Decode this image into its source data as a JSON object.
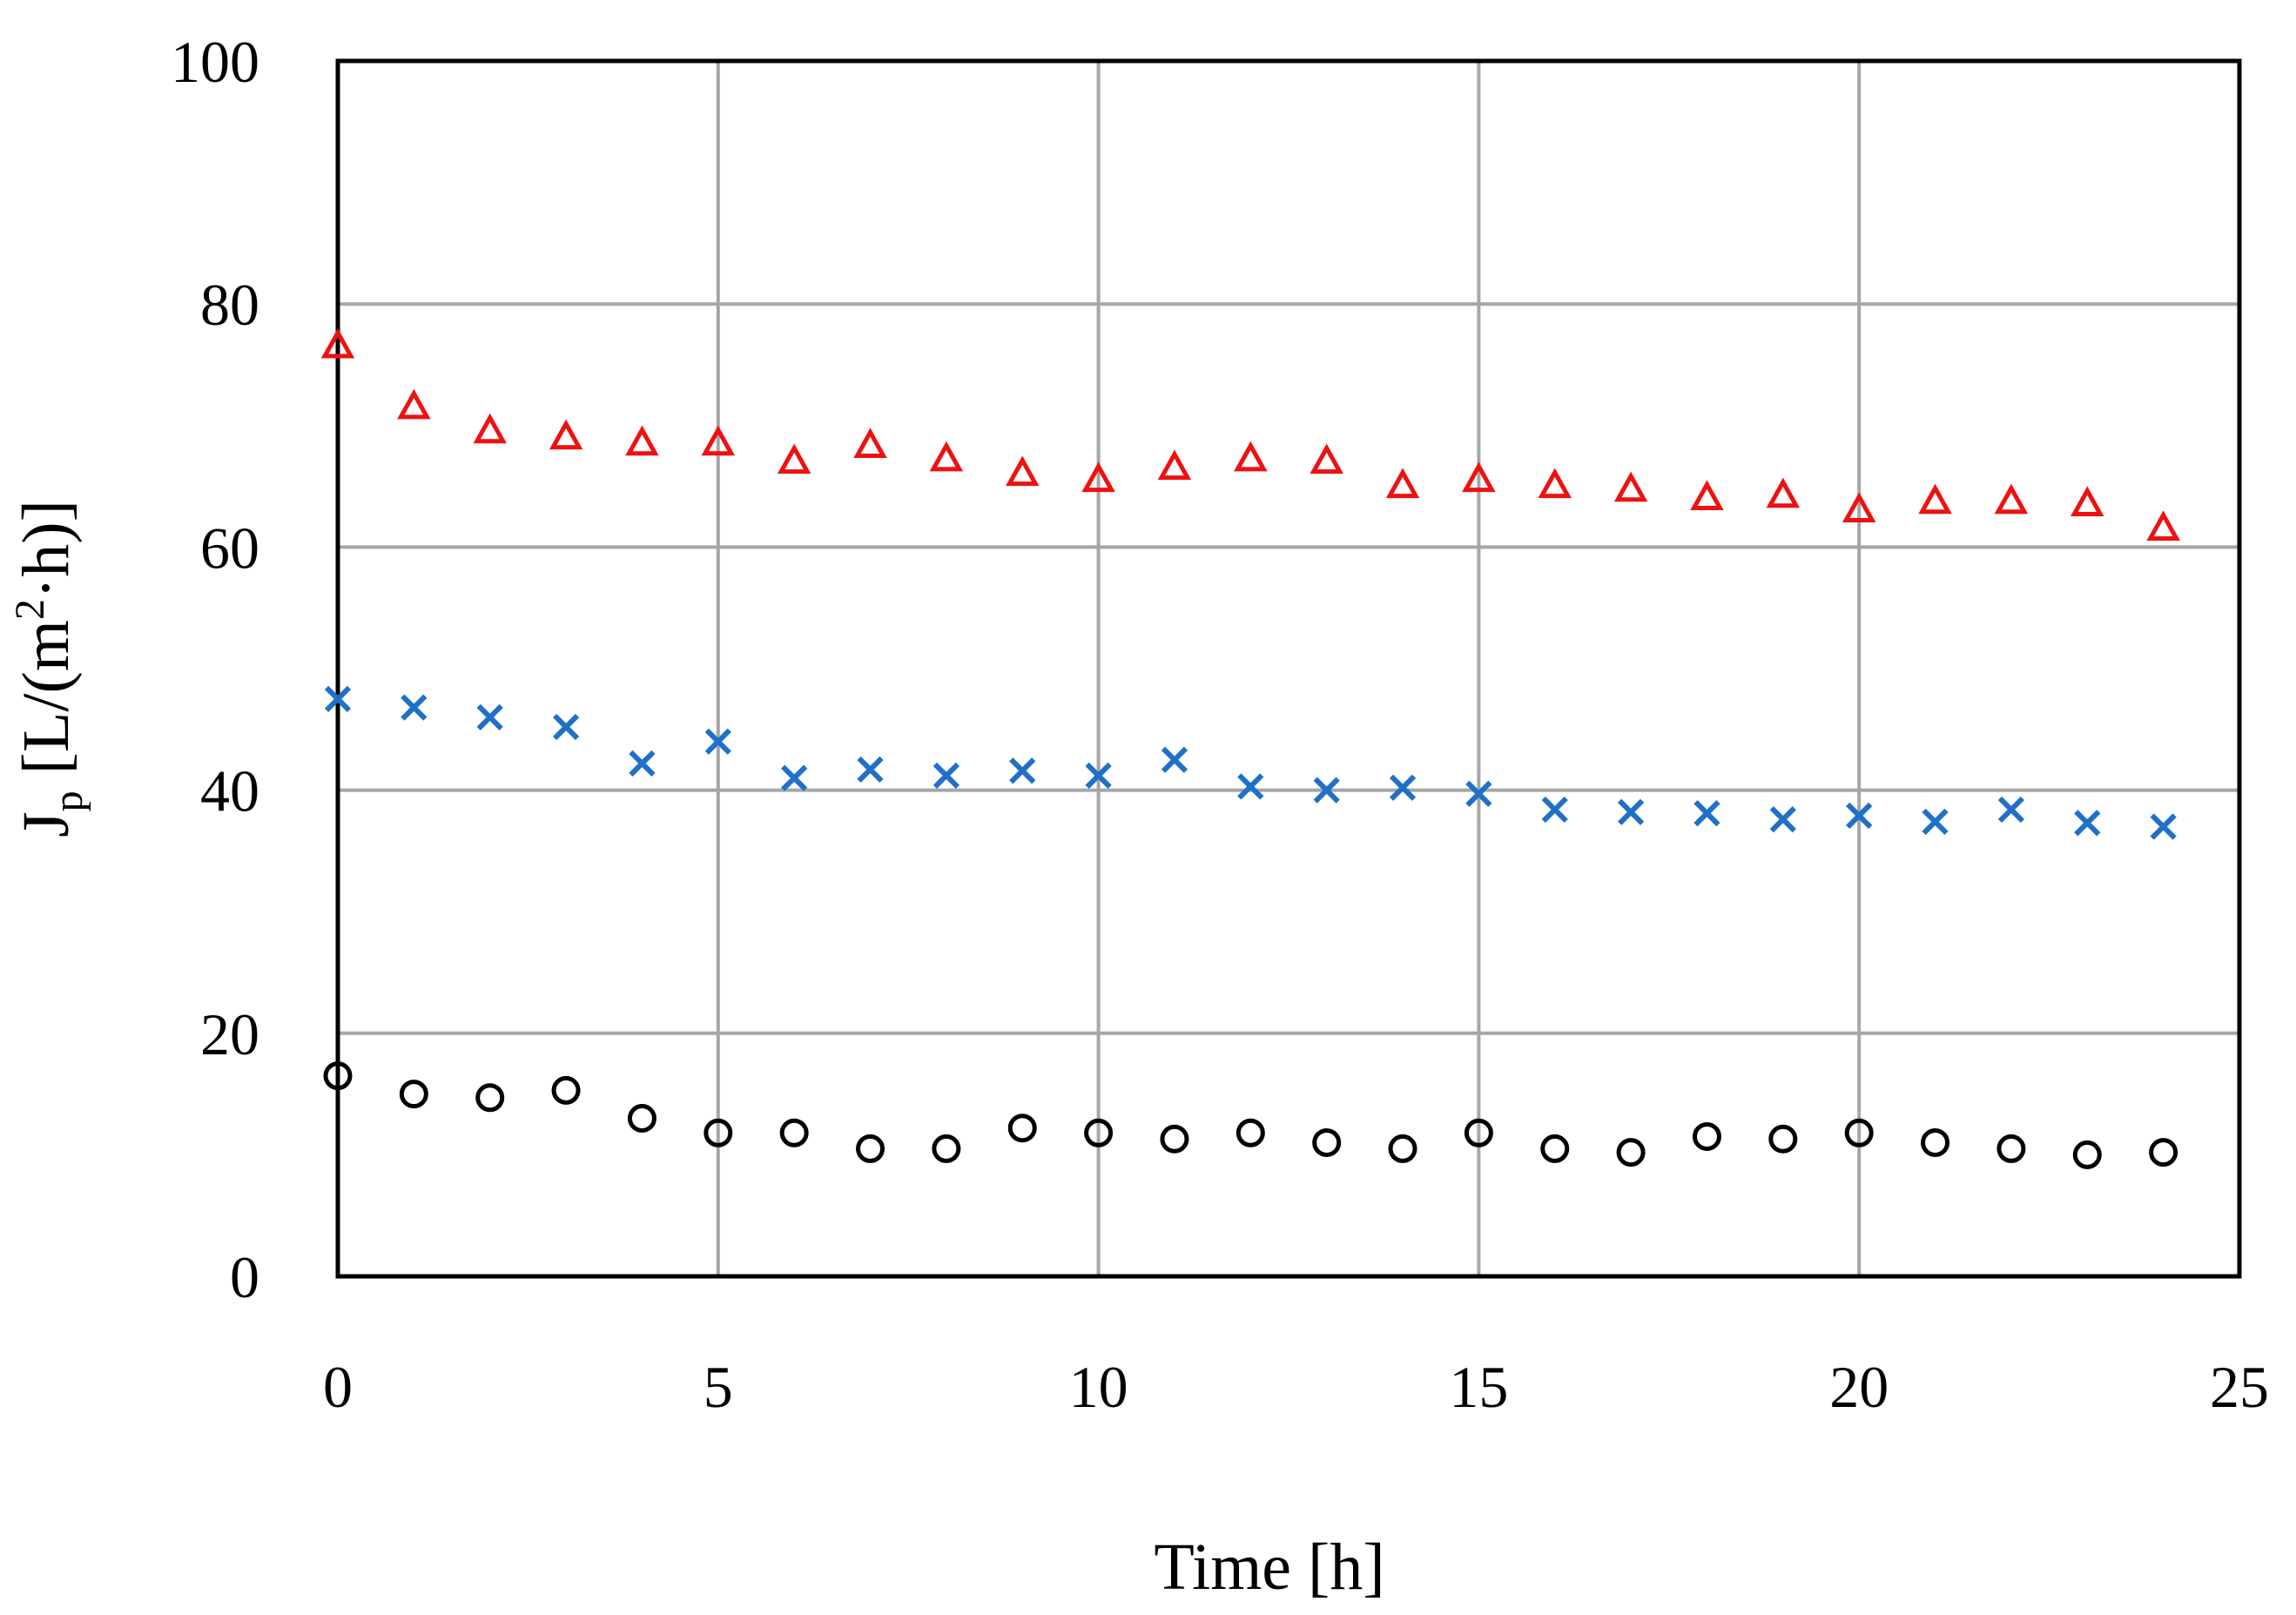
{
  "chart_data": {
    "type": "scatter",
    "title": "",
    "xlabel": "Time [h]",
    "ylabel_parts": {
      "main": "J",
      "sub": "p",
      "unit_start": " [L/(m",
      "sup": "2",
      "unit_end": "·h)]"
    },
    "xlim": [
      0,
      25
    ],
    "ylim": [
      0,
      100
    ],
    "xticks": [
      0,
      5,
      10,
      15,
      20,
      25
    ],
    "yticks": [
      0,
      20,
      40,
      60,
      80,
      100
    ],
    "grid": true,
    "legend": "none",
    "x": [
      0,
      1,
      2,
      3,
      4,
      5,
      6,
      7,
      8,
      9,
      10,
      11,
      12,
      13,
      14,
      15,
      16,
      17,
      18,
      19,
      20,
      21,
      22,
      23,
      24
    ],
    "series": [
      {
        "name": "triangle-series",
        "marker": "triangle",
        "color": "#ee1111",
        "values": [
          76.5,
          71.5,
          69.5,
          69,
          68.5,
          68.5,
          67,
          68.3,
          67.2,
          66,
          65.5,
          66.5,
          67.2,
          67,
          65,
          65.5,
          65,
          64.7,
          64,
          64.2,
          63,
          63.7,
          63.7,
          63.5,
          61.5
        ]
      },
      {
        "name": "cross-series",
        "marker": "cross",
        "color": "#1f70c8",
        "values": [
          47.5,
          46.8,
          46,
          45.2,
          42.2,
          44,
          41,
          41.7,
          41.2,
          41.6,
          41.2,
          42.5,
          40.3,
          40,
          40.2,
          39.7,
          38.4,
          38.2,
          38.1,
          37.6,
          37.9,
          37.4,
          38.4,
          37.3,
          37
        ]
      },
      {
        "name": "circle-series",
        "marker": "circle",
        "color": "#000000",
        "values": [
          16.5,
          15,
          14.7,
          15.3,
          13,
          11.8,
          11.8,
          10.5,
          10.5,
          12.2,
          11.8,
          11.3,
          11.8,
          11,
          10.5,
          11.8,
          10.5,
          10.2,
          11.5,
          11.3,
          11.8,
          11,
          10.5,
          10,
          10.2
        ]
      }
    ]
  }
}
